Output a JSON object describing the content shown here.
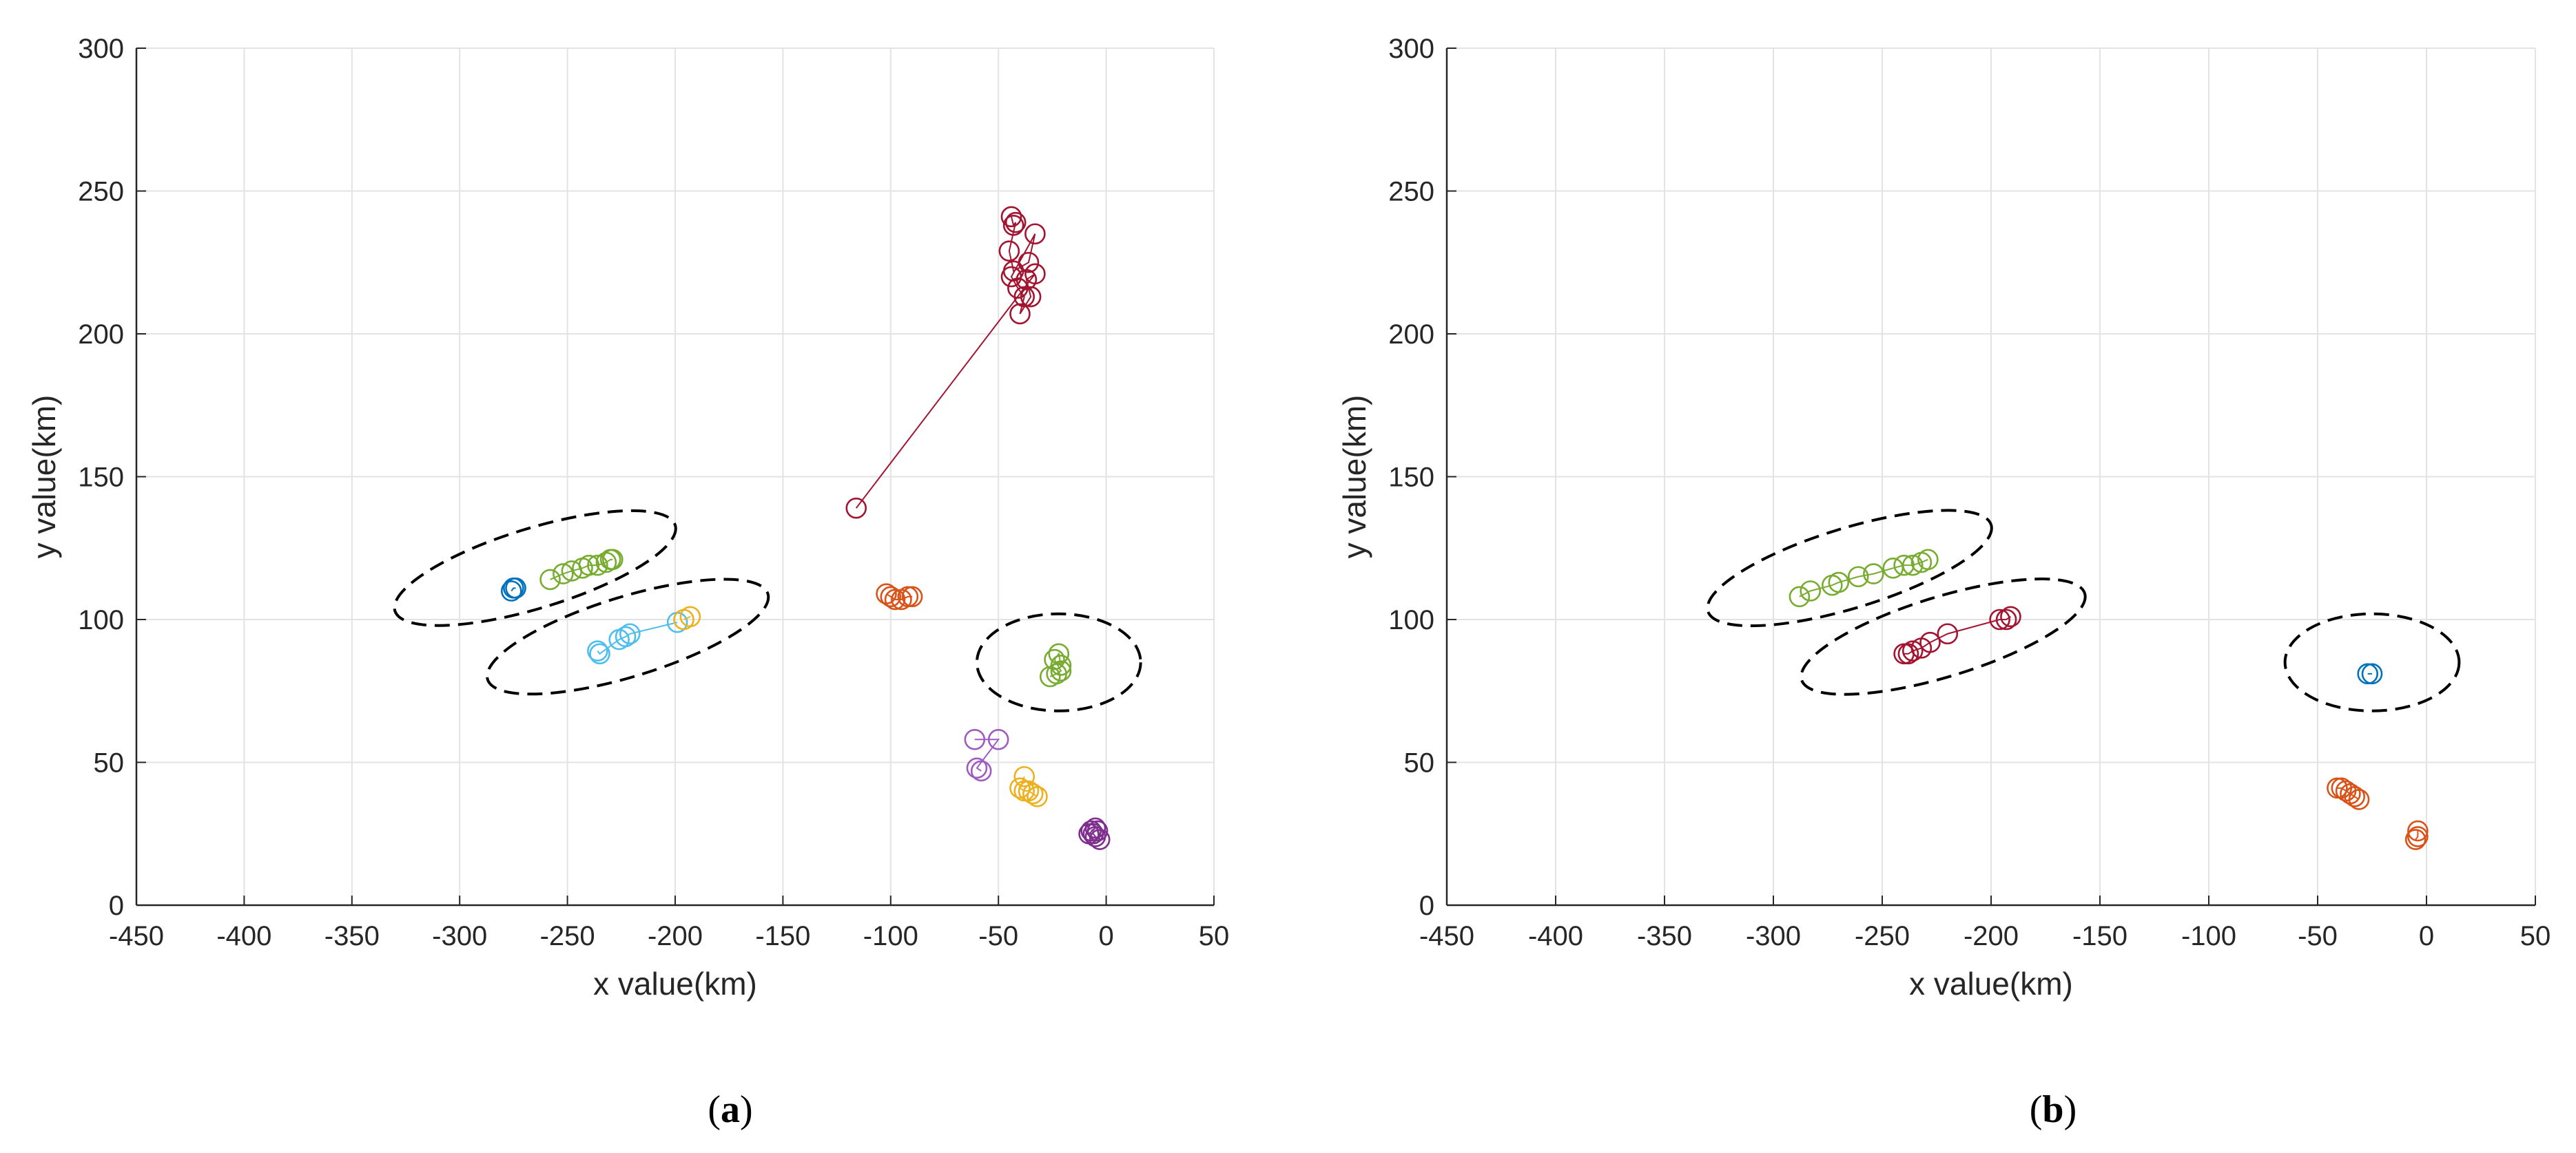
{
  "chart_data": [
    {
      "type": "scatter",
      "panel": "a",
      "caption_letter": "a",
      "xlabel": "x value(km)",
      "ylabel": "y value(km)",
      "xlim": [
        -450,
        50
      ],
      "ylim": [
        0,
        300
      ],
      "xticks": [
        -450,
        -400,
        -350,
        -300,
        -250,
        -200,
        -150,
        -100,
        -50,
        0,
        50
      ],
      "yticks": [
        0,
        50,
        100,
        150,
        200,
        250,
        300
      ],
      "grid": true,
      "series": [
        {
          "name": "blue",
          "color": "#0072BD",
          "points": [
            [
              -276,
              110
            ],
            [
              -275,
              111
            ],
            [
              -274,
              111
            ]
          ]
        },
        {
          "name": "green",
          "color": "#77AC30",
          "points": [
            [
              -258,
              114
            ],
            [
              -252,
              116
            ],
            [
              -248,
              117
            ],
            [
              -243,
              118
            ],
            [
              -240,
              119
            ],
            [
              -236,
              119
            ],
            [
              -232,
              120
            ],
            [
              -230,
              121
            ],
            [
              -229,
              121
            ]
          ]
        },
        {
          "name": "light-blue",
          "color": "#4DBEEE",
          "points": [
            [
              -236,
              89
            ],
            [
              -235,
              88
            ],
            [
              -226,
              93
            ],
            [
              -223,
              94
            ],
            [
              -221,
              95
            ],
            [
              -199,
              99
            ]
          ]
        },
        {
          "name": "yellow",
          "color": "#EDB120",
          "points": [
            [
              -196,
              100
            ],
            [
              -193,
              101
            ]
          ]
        },
        {
          "name": "crimson",
          "color": "#A2142F",
          "points": [
            [
              -44,
              241
            ],
            [
              -43,
              238
            ],
            [
              -42,
              239
            ],
            [
              -45,
              229
            ],
            [
              -43,
              222
            ],
            [
              -36,
              225
            ],
            [
              -33,
              235
            ],
            [
              -44,
              220
            ],
            [
              -41,
              216
            ],
            [
              -38,
              213
            ],
            [
              -40,
              207
            ],
            [
              -35,
              213
            ],
            [
              -37,
              219
            ],
            [
              -33,
              221
            ],
            [
              -116,
              139
            ]
          ]
        },
        {
          "name": "orange",
          "color": "#D95319",
          "points": [
            [
              -102,
              109
            ],
            [
              -100,
              108
            ],
            [
              -98,
              107
            ],
            [
              -95,
              107
            ],
            [
              -92,
              108
            ],
            [
              -90,
              108
            ]
          ]
        },
        {
          "name": "green-small",
          "color": "#77AC30",
          "points": [
            [
              -26,
              80
            ],
            [
              -23,
              81
            ],
            [
              -21,
              82
            ],
            [
              -24,
              86
            ],
            [
              -22,
              88
            ],
            [
              -21,
              84
            ]
          ]
        },
        {
          "name": "purple-light",
          "color": "#9E5CC2",
          "points": [
            [
              -61,
              58
            ],
            [
              -50,
              58
            ],
            [
              -60,
              48
            ],
            [
              -58,
              47
            ]
          ]
        },
        {
          "name": "gold",
          "color": "#EDB120",
          "points": [
            [
              -38,
              45
            ],
            [
              -40,
              41
            ],
            [
              -38,
              40
            ],
            [
              -36,
              40
            ],
            [
              -34,
              39
            ],
            [
              -32,
              38
            ]
          ]
        },
        {
          "name": "purple",
          "color": "#7E2F8E",
          "points": [
            [
              -7,
              26
            ],
            [
              -5,
              27
            ],
            [
              -8,
              25
            ],
            [
              -6,
              25
            ],
            [
              -5,
              24
            ],
            [
              -3,
              23
            ],
            [
              -4,
              26
            ]
          ]
        }
      ],
      "ellipses": [
        {
          "cx": -265,
          "cy": 118,
          "rx": 68,
          "ry": 14,
          "angle": 17
        },
        {
          "cx": -222,
          "cy": 94,
          "rx": 68,
          "ry": 14,
          "angle": 17
        },
        {
          "cx": -22,
          "cy": 85,
          "rx": 38,
          "ry": 17,
          "angle": 0
        }
      ]
    },
    {
      "type": "scatter",
      "panel": "b",
      "caption_letter": "b",
      "xlabel": "x value(km)",
      "ylabel": "y value(km)",
      "xlim": [
        -450,
        50
      ],
      "ylim": [
        0,
        300
      ],
      "xticks": [
        -450,
        -400,
        -350,
        -300,
        -250,
        -200,
        -150,
        -100,
        -50,
        0,
        50
      ],
      "yticks": [
        0,
        50,
        100,
        150,
        200,
        250,
        300
      ],
      "grid": true,
      "series": [
        {
          "name": "green",
          "color": "#77AC30",
          "points": [
            [
              -288,
              108
            ],
            [
              -283,
              110
            ],
            [
              -273,
              112
            ],
            [
              -270,
              113
            ],
            [
              -261,
              115
            ],
            [
              -254,
              116
            ],
            [
              -245,
              118
            ],
            [
              -240,
              119
            ],
            [
              -236,
              119
            ],
            [
              -232,
              120
            ],
            [
              -229,
              121
            ]
          ]
        },
        {
          "name": "crimson",
          "color": "#A2142F",
          "points": [
            [
              -240,
              88
            ],
            [
              -238,
              88
            ],
            [
              -236,
              89
            ],
            [
              -232,
              90
            ],
            [
              -228,
              92
            ],
            [
              -220,
              95
            ],
            [
              -196,
              100
            ],
            [
              -193,
              100
            ],
            [
              -191,
              101
            ]
          ]
        },
        {
          "name": "blue",
          "color": "#0072BD",
          "points": [
            [
              -27,
              81
            ],
            [
              -25,
              81
            ]
          ]
        },
        {
          "name": "orange",
          "color": "#D95319",
          "points": [
            [
              -41,
              41
            ],
            [
              -39,
              41
            ],
            [
              -37,
              40
            ],
            [
              -35,
              39
            ],
            [
              -33,
              38
            ],
            [
              -31,
              37
            ]
          ]
        },
        {
          "name": "orange-small",
          "color": "#D95319",
          "points": [
            [
              -4,
              26
            ],
            [
              -4,
              24
            ],
            [
              -5,
              23
            ]
          ]
        }
      ],
      "ellipses": [
        {
          "cx": -265,
          "cy": 118,
          "rx": 68,
          "ry": 14,
          "angle": 17
        },
        {
          "cx": -222,
          "cy": 94,
          "rx": 68,
          "ry": 14,
          "angle": 17
        },
        {
          "cx": -25,
          "cy": 85,
          "rx": 40,
          "ry": 17,
          "angle": 0
        }
      ]
    }
  ]
}
